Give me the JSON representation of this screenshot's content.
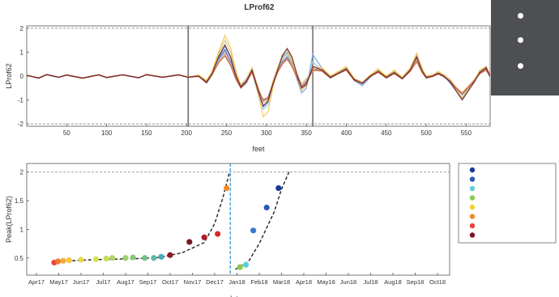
{
  "chart_data": [
    {
      "type": "line",
      "title": "LProf62",
      "xlabel": "feet",
      "ylabel": "LProf62",
      "xlim": [
        0,
        580
      ],
      "ylim": [
        -2.1,
        2.1
      ],
      "xticks": [
        50,
        100,
        150,
        200,
        250,
        300,
        350,
        400,
        450,
        500,
        550
      ],
      "yticks": [
        -2,
        -1,
        0,
        1,
        2
      ],
      "reference_lines_y": [
        2,
        -2
      ],
      "vertical_lines_x": [
        202,
        358
      ],
      "colors": [
        "#2f55c8",
        "#6a9ee0",
        "#9ec8e6",
        "#d4c878",
        "#f2c64a",
        "#e0a070",
        "#c85a3a",
        "#6a1a2a"
      ],
      "x": [
        0,
        15,
        25,
        40,
        50,
        70,
        90,
        100,
        120,
        140,
        150,
        170,
        190,
        202,
        215,
        225,
        232,
        240,
        248,
        255,
        262,
        268,
        275,
        282,
        290,
        296,
        302,
        308,
        314,
        320,
        326,
        332,
        338,
        344,
        350,
        358,
        370,
        380,
        390,
        400,
        410,
        420,
        430,
        440,
        450,
        460,
        470,
        480,
        488,
        495,
        500,
        508,
        515,
        522,
        530,
        537,
        545,
        552,
        560,
        567,
        575,
        580
      ],
      "series": [
        {
          "values": [
            0.03,
            -0.08,
            0.06,
            -0.05,
            0.04,
            -0.09,
            0.05,
            -0.06,
            0.05,
            -0.07,
            0.06,
            -0.05,
            0.05,
            -0.05,
            0.0,
            -0.25,
            0.1,
            0.7,
            1.1,
            0.6,
            -0.1,
            -0.4,
            -0.2,
            0.2,
            -0.6,
            -1.0,
            -0.9,
            -0.3,
            0.2,
            0.6,
            0.8,
            0.5,
            0.0,
            -0.4,
            -0.2,
            0.3,
            0.25,
            -0.05,
            0.12,
            0.3,
            -0.15,
            -0.3,
            0.0,
            0.2,
            -0.05,
            0.15,
            -0.1,
            0.25,
            0.75,
            0.2,
            -0.05,
            0.0,
            0.12,
            0.0,
            -0.2,
            -0.5,
            -0.75,
            -0.5,
            -0.2,
            0.15,
            0.3,
            0.0
          ]
        },
        {
          "values": [
            0.02,
            -0.07,
            0.07,
            -0.05,
            0.05,
            -0.08,
            0.06,
            -0.05,
            0.06,
            -0.06,
            0.05,
            -0.04,
            0.06,
            -0.04,
            0.02,
            -0.3,
            0.05,
            0.75,
            1.25,
            0.8,
            0.0,
            -0.5,
            -0.3,
            0.2,
            -0.8,
            -1.3,
            -1.1,
            -0.4,
            0.3,
            0.8,
            1.0,
            0.6,
            -0.1,
            -0.7,
            -0.5,
            0.9,
            0.3,
            -0.1,
            0.15,
            0.35,
            -0.2,
            -0.4,
            -0.05,
            0.25,
            -0.05,
            0.2,
            -0.1,
            0.3,
            0.9,
            0.3,
            -0.05,
            0.0,
            0.15,
            0.0,
            -0.3,
            -0.6,
            -0.95,
            -0.6,
            -0.25,
            0.2,
            0.4,
            0.0
          ]
        },
        {
          "values": [
            0.04,
            -0.09,
            0.05,
            -0.06,
            0.04,
            -0.1,
            0.04,
            -0.07,
            0.05,
            -0.08,
            0.06,
            -0.06,
            0.04,
            -0.05,
            -0.02,
            -0.22,
            0.12,
            0.65,
            1.0,
            0.55,
            -0.15,
            -0.5,
            -0.15,
            0.25,
            -0.7,
            -1.4,
            -1.2,
            -0.35,
            0.25,
            0.7,
            0.9,
            0.55,
            0.05,
            -0.5,
            -0.35,
            0.6,
            0.2,
            -0.1,
            0.1,
            0.25,
            -0.2,
            -0.35,
            0.0,
            0.2,
            -0.1,
            0.1,
            -0.12,
            0.22,
            0.7,
            0.15,
            -0.1,
            0.0,
            0.1,
            -0.05,
            -0.25,
            -0.55,
            -0.8,
            -0.55,
            -0.22,
            0.1,
            0.25,
            -0.05
          ]
        },
        {
          "values": [
            0.05,
            -0.07,
            0.06,
            -0.04,
            0.06,
            -0.07,
            0.06,
            -0.05,
            0.06,
            -0.06,
            0.07,
            -0.05,
            0.05,
            -0.03,
            0.03,
            -0.2,
            0.15,
            0.9,
            1.5,
            1.0,
            0.1,
            -0.35,
            -0.1,
            0.35,
            -0.5,
            -1.1,
            -1.0,
            -0.2,
            0.35,
            0.75,
            0.95,
            0.6,
            0.1,
            -0.3,
            -0.1,
            0.2,
            0.3,
            0.0,
            0.15,
            0.35,
            -0.1,
            -0.25,
            0.05,
            0.25,
            0.0,
            0.2,
            -0.05,
            0.3,
            0.85,
            0.25,
            0.0,
            0.05,
            0.15,
            0.05,
            -0.15,
            -0.45,
            -0.7,
            -0.45,
            -0.15,
            0.2,
            0.35,
            0.05
          ]
        },
        {
          "values": [
            0.04,
            -0.08,
            0.07,
            -0.05,
            0.05,
            -0.08,
            0.06,
            -0.05,
            0.05,
            -0.07,
            0.06,
            -0.04,
            0.06,
            -0.04,
            0.04,
            -0.18,
            0.2,
            1.0,
            1.7,
            1.2,
            0.2,
            -0.4,
            -0.25,
            0.3,
            -0.8,
            -1.7,
            -1.5,
            -0.5,
            0.3,
            0.9,
            1.1,
            0.7,
            0.0,
            -0.6,
            -0.4,
            0.4,
            0.35,
            0.0,
            0.2,
            0.4,
            -0.1,
            -0.3,
            0.05,
            0.3,
            0.0,
            0.25,
            -0.05,
            0.35,
            0.95,
            0.3,
            0.0,
            0.05,
            0.2,
            0.05,
            -0.2,
            -0.55,
            -0.9,
            -0.55,
            -0.2,
            0.25,
            0.4,
            0.05
          ]
        },
        {
          "values": [
            0.03,
            -0.08,
            0.06,
            -0.05,
            0.05,
            -0.09,
            0.05,
            -0.06,
            0.05,
            -0.07,
            0.05,
            -0.05,
            0.05,
            -0.05,
            0.01,
            -0.25,
            0.08,
            0.6,
            0.95,
            0.5,
            -0.1,
            -0.45,
            -0.2,
            0.2,
            -0.55,
            -1.05,
            -0.95,
            -0.3,
            0.2,
            0.55,
            0.75,
            0.45,
            0.0,
            -0.4,
            -0.25,
            0.3,
            0.22,
            -0.05,
            0.1,
            0.28,
            -0.15,
            -0.3,
            0.0,
            0.18,
            -0.05,
            0.12,
            -0.1,
            0.22,
            0.65,
            0.18,
            -0.05,
            0.0,
            0.1,
            0.0,
            -0.2,
            -0.45,
            -0.7,
            -0.45,
            -0.18,
            0.12,
            0.28,
            0.0
          ]
        },
        {
          "values": [
            0.03,
            -0.09,
            0.06,
            -0.05,
            0.04,
            -0.09,
            0.05,
            -0.06,
            0.05,
            -0.07,
            0.06,
            -0.05,
            0.05,
            -0.05,
            -0.01,
            -0.28,
            0.06,
            0.55,
            0.85,
            0.45,
            -0.15,
            -0.5,
            -0.25,
            0.15,
            -0.6,
            -1.0,
            -0.9,
            -0.35,
            0.15,
            0.5,
            0.7,
            0.4,
            -0.05,
            -0.45,
            -0.3,
            0.25,
            0.2,
            -0.08,
            0.1,
            0.25,
            -0.18,
            -0.32,
            -0.02,
            0.15,
            -0.08,
            0.1,
            -0.12,
            0.2,
            0.6,
            0.15,
            -0.08,
            -0.02,
            0.08,
            -0.02,
            -0.22,
            -0.5,
            -0.75,
            -0.5,
            -0.2,
            0.1,
            0.25,
            -0.02
          ]
        },
        {
          "values": [
            0.03,
            -0.08,
            0.06,
            -0.05,
            0.04,
            -0.08,
            0.05,
            -0.06,
            0.05,
            -0.07,
            0.06,
            -0.05,
            0.05,
            -0.05,
            0.0,
            -0.25,
            0.1,
            0.8,
            1.3,
            0.8,
            0.0,
            -0.45,
            -0.2,
            0.25,
            -0.65,
            -1.25,
            -1.05,
            -0.35,
            0.25,
            0.85,
            1.15,
            0.8,
            0.1,
            -0.5,
            -0.35,
            0.4,
            0.25,
            -0.05,
            0.12,
            0.3,
            -0.15,
            -0.3,
            0.0,
            0.2,
            -0.05,
            0.15,
            -0.1,
            0.25,
            0.8,
            0.2,
            -0.05,
            0.0,
            0.12,
            0.0,
            -0.25,
            -0.6,
            -1.0,
            -0.65,
            -0.25,
            0.15,
            0.35,
            0.0
          ]
        }
      ]
    },
    {
      "type": "scatter",
      "xlabel": "date",
      "ylabel": "Peak(LProf62)",
      "ylim": [
        0.2,
        2.15
      ],
      "yticks": [
        0.5,
        1,
        1.5,
        2
      ],
      "reference_line_y": 2,
      "vertical_line_x": "Dec17 + 21d",
      "xtick_labels": [
        "Apr17",
        "May17",
        "Jun17",
        "Jul17",
        "Aug17",
        "Sep17",
        "Oct17",
        "Nov17",
        "Dec17",
        "Jan18",
        "Feb18",
        "Mar18",
        "Apr18",
        "May18",
        "Jun18",
        "Jul18",
        "Aug18",
        "Sep18",
        "Oct18"
      ],
      "points": [
        {
          "x": "Apr17 + 24d",
          "y": 0.42,
          "color": "#e8453c"
        },
        {
          "x": "Apr17 + 29d",
          "y": 0.44,
          "color": "#f07a2e"
        },
        {
          "x": "May17 + 6d",
          "y": 0.45,
          "color": "#f4a83a"
        },
        {
          "x": "May17 + 14d",
          "y": 0.46,
          "color": "#f7c83e"
        },
        {
          "x": "Jun17 + 0d",
          "y": 0.47,
          "color": "#e8d84a"
        },
        {
          "x": "Jun17 + 20d",
          "y": 0.48,
          "color": "#d8e050"
        },
        {
          "x": "Jul17 + 4d",
          "y": 0.49,
          "color": "#c8dc5a"
        },
        {
          "x": "Jul17 + 12d",
          "y": 0.5,
          "color": "#b0d468"
        },
        {
          "x": "Aug17 + 0d",
          "y": 0.5,
          "color": "#9fcf70"
        },
        {
          "x": "Aug17 + 10d",
          "y": 0.51,
          "color": "#88c878"
        },
        {
          "x": "Aug17 + 26d",
          "y": 0.5,
          "color": "#74c08a"
        },
        {
          "x": "Sep17 + 8d",
          "y": 0.5,
          "color": "#5cb8a0"
        },
        {
          "x": "Sep17 + 18d",
          "y": 0.52,
          "color": "#4aa8b8"
        },
        {
          "x": "Oct17 + 0d",
          "y": 0.55,
          "color": "#8a1c2c"
        },
        {
          "x": "Oct17 + 26d",
          "y": 0.78,
          "color": "#7a1424"
        },
        {
          "x": "Nov17 + 16d",
          "y": 0.86,
          "color": "#b01c2a"
        },
        {
          "x": "Dec17 + 4d",
          "y": 0.92,
          "color": "#d82a2a"
        },
        {
          "x": "Dec17 + 16d",
          "y": 1.72,
          "color": "#f08a28"
        },
        {
          "x": "Jan18 + 4d",
          "y": 0.34,
          "color": "#8ac850"
        },
        {
          "x": "Jan18 + 12d",
          "y": 0.38,
          "color": "#5cd0d8"
        },
        {
          "x": "Jan18 + 22d",
          "y": 0.98,
          "color": "#3a78d0"
        },
        {
          "x": "Feb18 + 10d",
          "y": 1.38,
          "color": "#2a5ab8"
        },
        {
          "x": "Feb18 + 26d",
          "y": 1.72,
          "color": "#1a3a9a"
        }
      ],
      "fit_curves": [
        {
          "style": "dashed",
          "x": [
            "Apr17 + 20d",
            "May17 + 16d",
            "Jun17 + 16d",
            "Jul17 + 16d",
            "Aug17 + 16d",
            "Sep17 + 16d",
            "Oct17 + 16d",
            "Nov17 + 16d",
            "Dec17 + 0d",
            "Dec17 + 11d",
            "Dec17 + 20d"
          ],
          "y": [
            0.42,
            0.45,
            0.47,
            0.48,
            0.49,
            0.51,
            0.59,
            0.77,
            1.1,
            1.55,
            2.0
          ]
        },
        {
          "style": "dashed",
          "x": [
            "Dec17 + 28d",
            "Jan18 + 16d",
            "Feb18 + 0d",
            "Feb18 + 20d",
            "Mar18 + 0d",
            "Mar18 + 10d"
          ],
          "y": [
            0.3,
            0.45,
            0.75,
            1.3,
            1.7,
            2.0
          ]
        }
      ],
      "legend": {
        "placement": "outside-right",
        "colors": [
          "#1a3a9a",
          "#2a5ab8",
          "#5cd0d8",
          "#8ac850",
          "#f4d03a",
          "#f08a28",
          "#e8453c",
          "#7a1424"
        ]
      }
    }
  ]
}
